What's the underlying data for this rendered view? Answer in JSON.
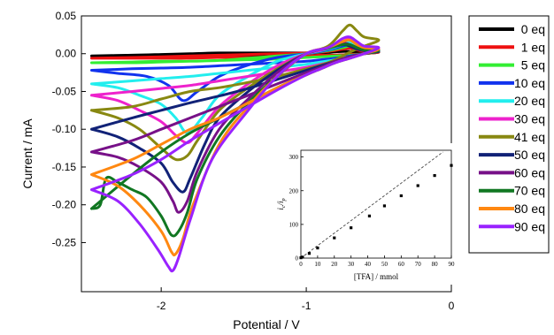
{
  "chart_data": [
    {
      "type": "line",
      "xlabel": "Potential / V",
      "ylabel": "Current / mA",
      "xlim": [
        -2.55,
        0.0
      ],
      "ylim": [
        -0.315,
        0.05
      ],
      "x_ticks": [
        -2,
        -1,
        0
      ],
      "x_tick_labels": [
        "-2",
        "-1",
        "0"
      ],
      "y_ticks": [
        0.05,
        0.0,
        -0.05,
        -0.1,
        -0.15,
        -0.2,
        -0.25
      ],
      "y_tick_labels": [
        "0.05",
        "0.00",
        "-0.05",
        "-0.10",
        "-0.15",
        "-0.20",
        "-0.25"
      ],
      "legend_position": "right",
      "series": [
        {
          "name": "0 eq",
          "color": "#000000",
          "x": [
            -2.48,
            -2.2,
            -2.0,
            -1.8,
            -1.6,
            -1.4,
            -1.2,
            -1.0,
            -0.85,
            -0.75,
            -0.7,
            -0.65,
            -0.6,
            -0.5,
            -0.6,
            -0.7,
            -0.8,
            -0.9,
            -1.0,
            -1.2,
            -1.4,
            -1.6,
            -1.8,
            -2.0,
            -2.2,
            -2.48
          ],
          "y": [
            -0.003,
            -0.002,
            -0.001,
            0.0,
            0.001,
            0.001,
            0.001,
            0.001,
            0.002,
            0.003,
            0.003,
            0.002,
            0.002,
            0.002,
            0.0,
            -0.001,
            -0.002,
            -0.001,
            -0.001,
            -0.001,
            -0.002,
            -0.002,
            -0.002,
            -0.002,
            -0.002,
            -0.003
          ]
        },
        {
          "name": "1 eq",
          "color": "#ee1111",
          "x": [
            -2.48,
            -2.2,
            -2.0,
            -1.8,
            -1.6,
            -1.4,
            -1.2,
            -1.0,
            -0.85,
            -0.75,
            -0.7,
            -0.65,
            -0.6,
            -0.5,
            -0.6,
            -0.7,
            -0.8,
            -0.9,
            -1.0,
            -1.2,
            -1.4,
            -1.6,
            -1.8,
            -2.0,
            -2.2,
            -2.48
          ],
          "y": [
            -0.006,
            -0.005,
            -0.004,
            -0.003,
            -0.002,
            -0.001,
            0.0,
            0.001,
            0.003,
            0.006,
            0.007,
            0.005,
            0.003,
            0.002,
            0.0,
            -0.001,
            -0.002,
            -0.002,
            -0.003,
            -0.004,
            -0.005,
            -0.005,
            -0.006,
            -0.006,
            -0.006,
            -0.006
          ]
        },
        {
          "name": "5 eq",
          "color": "#33ee33",
          "x": [
            -2.48,
            -2.2,
            -2.0,
            -1.8,
            -1.6,
            -1.4,
            -1.2,
            -1.0,
            -0.85,
            -0.75,
            -0.7,
            -0.65,
            -0.6,
            -0.5,
            -0.6,
            -0.7,
            -0.8,
            -0.9,
            -1.0,
            -1.2,
            -1.4,
            -1.6,
            -1.8,
            -2.0,
            -2.2,
            -2.48
          ],
          "y": [
            -0.012,
            -0.012,
            -0.011,
            -0.01,
            -0.009,
            -0.006,
            -0.003,
            0.0,
            0.004,
            0.008,
            0.01,
            0.007,
            0.004,
            0.003,
            0.0,
            -0.002,
            -0.003,
            -0.004,
            -0.005,
            -0.007,
            -0.008,
            -0.009,
            -0.01,
            -0.01,
            -0.011,
            -0.012
          ]
        },
        {
          "name": "10 eq",
          "color": "#1133ee",
          "x": [
            -2.48,
            -2.3,
            -2.1,
            -1.95,
            -1.85,
            -1.75,
            -1.6,
            -1.4,
            -1.2,
            -1.0,
            -0.85,
            -0.75,
            -0.7,
            -0.65,
            -0.6,
            -0.5,
            -0.6,
            -0.7,
            -0.8,
            -0.9,
            -1.0,
            -1.2,
            -1.4,
            -1.6,
            -1.8,
            -2.0,
            -2.2,
            -2.48
          ],
          "y": [
            -0.022,
            -0.026,
            -0.03,
            -0.042,
            -0.062,
            -0.05,
            -0.03,
            -0.015,
            -0.005,
            0.0,
            0.005,
            0.01,
            0.012,
            0.008,
            0.005,
            0.004,
            0.0,
            -0.003,
            -0.006,
            -0.008,
            -0.01,
            -0.012,
            -0.014,
            -0.016,
            -0.018,
            -0.019,
            -0.02,
            -0.022
          ]
        },
        {
          "name": "20 eq",
          "color": "#22eeee",
          "x": [
            -2.48,
            -2.3,
            -2.15,
            -2.0,
            -1.9,
            -1.82,
            -1.72,
            -1.6,
            -1.4,
            -1.2,
            -1.0,
            -0.85,
            -0.75,
            -0.7,
            -0.65,
            -0.6,
            -0.5,
            -0.6,
            -0.7,
            -0.8,
            -0.9,
            -1.0,
            -1.2,
            -1.4,
            -1.6,
            -1.8,
            -2.0,
            -2.2,
            -2.48
          ],
          "y": [
            -0.04,
            -0.045,
            -0.055,
            -0.067,
            -0.085,
            -0.105,
            -0.085,
            -0.055,
            -0.03,
            -0.01,
            0.0,
            0.006,
            0.012,
            0.015,
            0.01,
            0.006,
            0.005,
            0.0,
            -0.004,
            -0.008,
            -0.011,
            -0.014,
            -0.018,
            -0.022,
            -0.026,
            -0.03,
            -0.033,
            -0.036,
            -0.04
          ]
        },
        {
          "name": "30 eq",
          "color": "#ee22cc",
          "x": [
            -2.48,
            -2.3,
            -2.15,
            -2.0,
            -1.9,
            -1.82,
            -1.75,
            -1.6,
            -1.4,
            -1.2,
            -1.0,
            -0.85,
            -0.75,
            -0.7,
            -0.65,
            -0.6,
            -0.5,
            -0.6,
            -0.7,
            -0.8,
            -0.9,
            -1.0,
            -1.2,
            -1.4,
            -1.6,
            -1.8,
            -2.0,
            -2.2,
            -2.48
          ],
          "y": [
            -0.055,
            -0.062,
            -0.075,
            -0.09,
            -0.108,
            -0.118,
            -0.105,
            -0.07,
            -0.04,
            -0.016,
            0.0,
            0.007,
            0.016,
            0.02,
            0.014,
            0.008,
            0.006,
            0.0,
            -0.005,
            -0.01,
            -0.014,
            -0.018,
            -0.024,
            -0.03,
            -0.036,
            -0.042,
            -0.046,
            -0.05,
            -0.055
          ]
        },
        {
          "name": "41 eq",
          "color": "#888811",
          "x": [
            -2.48,
            -2.3,
            -2.15,
            -2.0,
            -1.9,
            -1.82,
            -1.75,
            -1.6,
            -1.4,
            -1.2,
            -1.0,
            -0.85,
            -0.75,
            -0.7,
            -0.65,
            -0.6,
            -0.5,
            -0.6,
            -0.7,
            -0.8,
            -0.9,
            -1.0,
            -1.2,
            -1.4,
            -1.6,
            -1.8,
            -2.0,
            -2.2,
            -2.48
          ],
          "y": [
            -0.075,
            -0.085,
            -0.1,
            -0.125,
            -0.14,
            -0.135,
            -0.115,
            -0.075,
            -0.045,
            -0.02,
            0.0,
            0.01,
            0.03,
            0.038,
            0.03,
            0.022,
            0.018,
            0.01,
            0.002,
            -0.008,
            -0.015,
            -0.02,
            -0.03,
            -0.038,
            -0.045,
            -0.05,
            -0.06,
            -0.07,
            -0.075
          ]
        },
        {
          "name": "50 eq",
          "color": "#112277",
          "x": [
            -2.48,
            -2.3,
            -2.15,
            -2.0,
            -1.92,
            -1.85,
            -1.8,
            -1.7,
            -1.6,
            -1.4,
            -1.2,
            -1.0,
            -0.85,
            -0.75,
            -0.7,
            -0.65,
            -0.6,
            -0.5,
            -0.6,
            -0.7,
            -0.8,
            -0.9,
            -1.0,
            -1.2,
            -1.4,
            -1.6,
            -1.8,
            -2.0,
            -2.2,
            -2.48
          ],
          "y": [
            -0.1,
            -0.11,
            -0.125,
            -0.145,
            -0.17,
            -0.183,
            -0.165,
            -0.12,
            -0.085,
            -0.05,
            -0.022,
            0.0,
            0.008,
            0.012,
            0.01,
            0.006,
            0.004,
            0.003,
            0.0,
            -0.004,
            -0.01,
            -0.016,
            -0.022,
            -0.034,
            -0.046,
            -0.056,
            -0.065,
            -0.075,
            -0.085,
            -0.1
          ]
        },
        {
          "name": "60 eq",
          "color": "#771188",
          "x": [
            -2.48,
            -2.3,
            -2.15,
            -2.0,
            -1.92,
            -1.88,
            -1.82,
            -1.75,
            -1.6,
            -1.4,
            -1.2,
            -1.0,
            -0.85,
            -0.75,
            -0.7,
            -0.65,
            -0.6,
            -0.5,
            -0.6,
            -0.7,
            -0.8,
            -0.9,
            -1.0,
            -1.2,
            -1.4,
            -1.6,
            -1.8,
            -2.0,
            -2.2,
            -2.48
          ],
          "y": [
            -0.13,
            -0.137,
            -0.15,
            -0.17,
            -0.195,
            -0.21,
            -0.195,
            -0.155,
            -0.1,
            -0.06,
            -0.025,
            0.0,
            0.008,
            0.014,
            0.012,
            0.008,
            0.005,
            0.004,
            0.0,
            -0.004,
            -0.01,
            -0.018,
            -0.025,
            -0.04,
            -0.055,
            -0.07,
            -0.085,
            -0.1,
            -0.115,
            -0.13
          ]
        },
        {
          "name": "70 eq",
          "color": "#117722",
          "x": [
            -2.48,
            -2.42,
            -2.38,
            -2.3,
            -2.2,
            -2.1,
            -2.0,
            -1.93,
            -1.88,
            -1.82,
            -1.75,
            -1.6,
            -1.4,
            -1.2,
            -1.0,
            -0.85,
            -0.75,
            -0.7,
            -0.65,
            -0.6,
            -0.5,
            -0.6,
            -0.7,
            -0.8,
            -0.9,
            -1.0,
            -1.2,
            -1.4,
            -1.6,
            -1.8,
            -2.0,
            -2.2,
            -2.48
          ],
          "y": [
            -0.205,
            -0.2,
            -0.165,
            -0.17,
            -0.18,
            -0.19,
            -0.215,
            -0.24,
            -0.235,
            -0.21,
            -0.165,
            -0.11,
            -0.065,
            -0.03,
            0.0,
            0.007,
            0.012,
            0.012,
            0.008,
            0.005,
            0.004,
            0.0,
            -0.006,
            -0.012,
            -0.02,
            -0.028,
            -0.045,
            -0.065,
            -0.085,
            -0.105,
            -0.13,
            -0.16,
            -0.205
          ]
        },
        {
          "name": "80 eq",
          "color": "#ff8811",
          "x": [
            -2.48,
            -2.3,
            -2.15,
            -2.0,
            -1.93,
            -1.9,
            -1.85,
            -1.78,
            -1.6,
            -1.4,
            -1.2,
            -1.0,
            -0.85,
            -0.75,
            -0.7,
            -0.65,
            -0.6,
            -0.5,
            -0.6,
            -0.7,
            -0.8,
            -0.9,
            -1.0,
            -1.2,
            -1.4,
            -1.6,
            -1.8,
            -2.0,
            -2.2,
            -2.48
          ],
          "y": [
            -0.16,
            -0.175,
            -0.2,
            -0.235,
            -0.262,
            -0.265,
            -0.245,
            -0.2,
            -0.12,
            -0.07,
            -0.03,
            0.0,
            0.008,
            0.016,
            0.018,
            0.012,
            0.008,
            0.006,
            0.0,
            -0.006,
            -0.012,
            -0.02,
            -0.028,
            -0.045,
            -0.065,
            -0.085,
            -0.1,
            -0.12,
            -0.14,
            -0.16
          ]
        },
        {
          "name": "90 eq",
          "color": "#9922ff",
          "x": [
            -2.48,
            -2.3,
            -2.15,
            -2.02,
            -1.95,
            -1.92,
            -1.88,
            -1.8,
            -1.65,
            -1.4,
            -1.2,
            -1.0,
            -0.85,
            -0.75,
            -0.7,
            -0.65,
            -0.6,
            -0.5,
            -0.6,
            -0.7,
            -0.8,
            -0.9,
            -1.0,
            -1.2,
            -1.4,
            -1.6,
            -1.8,
            -2.0,
            -2.2,
            -2.48
          ],
          "y": [
            -0.18,
            -0.195,
            -0.225,
            -0.26,
            -0.282,
            -0.287,
            -0.27,
            -0.22,
            -0.14,
            -0.075,
            -0.03,
            0.0,
            0.008,
            0.02,
            0.022,
            0.016,
            0.01,
            0.008,
            0.0,
            -0.006,
            -0.012,
            -0.02,
            -0.028,
            -0.048,
            -0.07,
            -0.092,
            -0.115,
            -0.14,
            -0.16,
            -0.18
          ]
        }
      ]
    },
    {
      "type": "scatter",
      "xlabel": "[TFA] / mmol",
      "ylabel_main": "i",
      "ylabel_main_sub": "c",
      "ylabel_sep": "/i",
      "ylabel_den_sub": "p",
      "xlim": [
        0,
        90
      ],
      "ylim": [
        0,
        320
      ],
      "x_ticks": [
        0,
        10,
        20,
        30,
        40,
        50,
        60,
        70,
        80,
        90
      ],
      "x_tick_labels": [
        "0",
        "10",
        "20",
        "30",
        "40",
        "50",
        "60",
        "70",
        "80",
        "90"
      ],
      "y_ticks": [
        0,
        100,
        200,
        300
      ],
      "y_tick_labels": [
        "0",
        "100",
        "200",
        "300"
      ],
      "points": {
        "x": [
          0,
          1,
          5,
          10,
          20,
          30,
          41,
          50,
          60,
          70,
          80,
          90
        ],
        "y": [
          1,
          3,
          14,
          30,
          60,
          90,
          125,
          155,
          185,
          215,
          245,
          275
        ]
      },
      "fit_line": {
        "x": [
          0,
          85
        ],
        "y": [
          0,
          315
        ],
        "style": "dashed"
      }
    }
  ]
}
